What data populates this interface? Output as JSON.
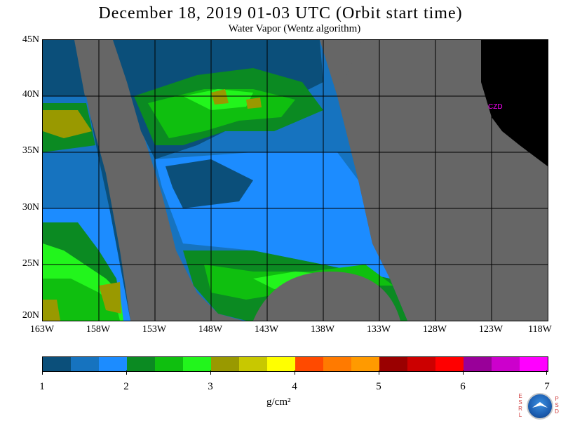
{
  "title": "December 18, 2019  01-03 UTC  (Orbit start time)",
  "subtitle": "Water Vapor (Wentz algorithm)",
  "lat_labels": [
    "45N",
    "40N",
    "35N",
    "30N",
    "25N",
    "20N"
  ],
  "lon_labels": [
    "163W",
    "158W",
    "153W",
    "148W",
    "143W",
    "138W",
    "133W",
    "128W",
    "123W",
    "118W"
  ],
  "marker_label": "CZD",
  "colorbar": {
    "ticks": [
      "1",
      "2",
      "3",
      "4",
      "5",
      "6",
      "7"
    ],
    "units": "g/cm²",
    "colors": [
      "#0b4f7a",
      "#1673bf",
      "#1c8cff",
      "#0b8a22",
      "#0fbf0f",
      "#22f51c",
      "#999900",
      "#c8c800",
      "#ffff00",
      "#ff4a00",
      "#ff7a00",
      "#ff9a00",
      "#9a0000",
      "#cc0000",
      "#ff0000",
      "#990099",
      "#cc00cc",
      "#ff00ff"
    ]
  },
  "logo": {
    "left_letters": "ESRL",
    "right_letters": "PSD"
  }
}
